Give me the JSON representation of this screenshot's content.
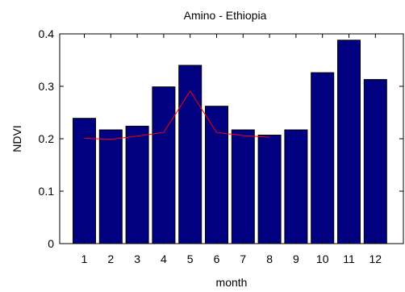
{
  "chart_data": {
    "type": "bar",
    "title": "Amino - Ethiopia",
    "xlabel": "month",
    "ylabel": "NDVI",
    "categories": [
      "1",
      "2",
      "3",
      "4",
      "5",
      "6",
      "7",
      "8",
      "9",
      "10",
      "11",
      "12"
    ],
    "series": [
      {
        "type": "bar",
        "values": [
          0.239,
          0.217,
          0.224,
          0.299,
          0.34,
          0.262,
          0.217,
          0.207,
          0.217,
          0.326,
          0.388,
          0.313
        ],
        "color": "#000080"
      },
      {
        "type": "line",
        "x": [
          "1",
          "2",
          "3",
          "4",
          "5",
          "6",
          "7",
          "8"
        ],
        "values": [
          0.201,
          0.199,
          0.205,
          0.212,
          0.291,
          0.212,
          0.206,
          0.203
        ],
        "color": "#ff0000"
      }
    ],
    "ylim": [
      0,
      0.4
    ],
    "yticks": [
      "0",
      "0.1",
      "0.2",
      "0.3",
      "0.4"
    ],
    "grid": false,
    "legend": false
  }
}
